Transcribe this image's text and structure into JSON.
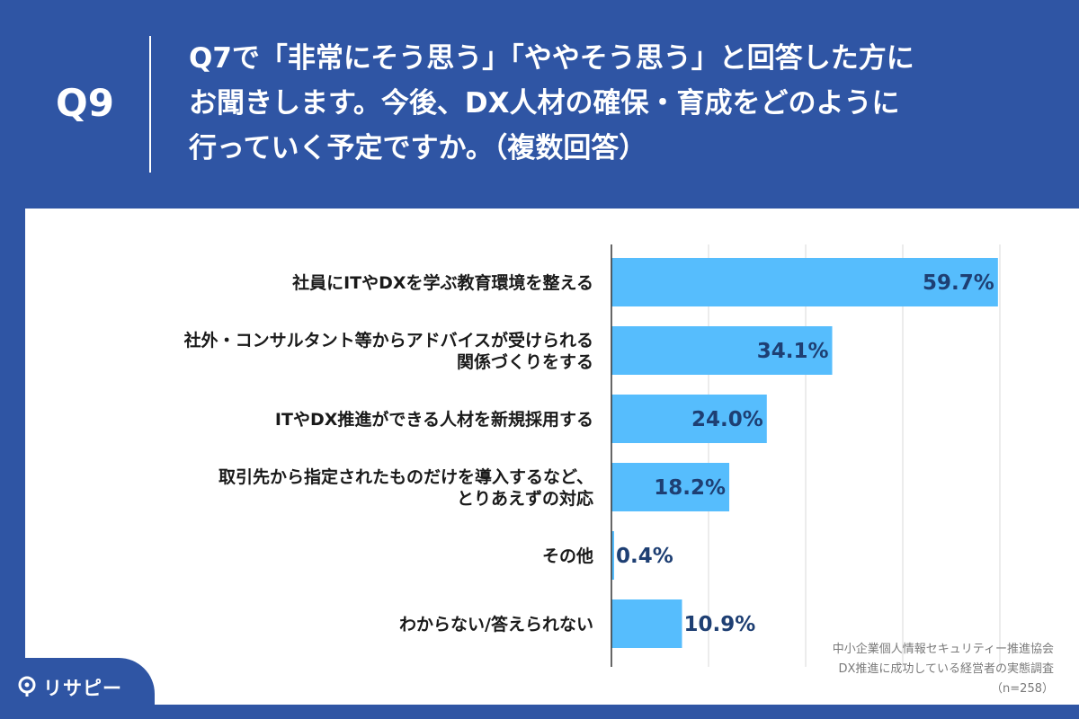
{
  "header": {
    "q_label": "Q9",
    "question_lines": [
      "Q7で「非常にそう思う」「ややそう思う」と回答した方に",
      "お聞きします。今後、DX人材の確保・育成をどのように",
      "行っていく予定ですか。（複数回答）"
    ]
  },
  "colors": {
    "background": "#2f55a4",
    "bar": "#56bdfd",
    "value_text": "#1e3f73",
    "grid": "#d9d9d9"
  },
  "chart_data": {
    "type": "bar",
    "orientation": "horizontal",
    "categories": [
      [
        "社員にITやDXを学ぶ教育環境を整える"
      ],
      [
        "社外・コンサルタント等からアドバイスが受けられる",
        "関係づくりをする"
      ],
      [
        "ITやDX推進ができる人材を新規採用する"
      ],
      [
        "取引先から指定されたものだけを導入するなど、",
        "とりあえずの対応"
      ],
      [
        "その他"
      ],
      [
        "わからない/答えられない"
      ]
    ],
    "values": [
      59.7,
      34.1,
      24.0,
      18.2,
      0.4,
      10.9
    ],
    "value_labels": [
      "59.7%",
      "34.1%",
      "24.0%",
      "18.2%",
      "0.4%",
      "10.9%"
    ],
    "xlim": [
      0,
      60
    ],
    "grid": true
  },
  "source": {
    "line1": "中小企業個人情報セキュリティー推進協会",
    "line2": "DX推進に成功している経営者の実態調査",
    "line3": "（n=258）"
  },
  "logo": {
    "text": "リサピー"
  }
}
